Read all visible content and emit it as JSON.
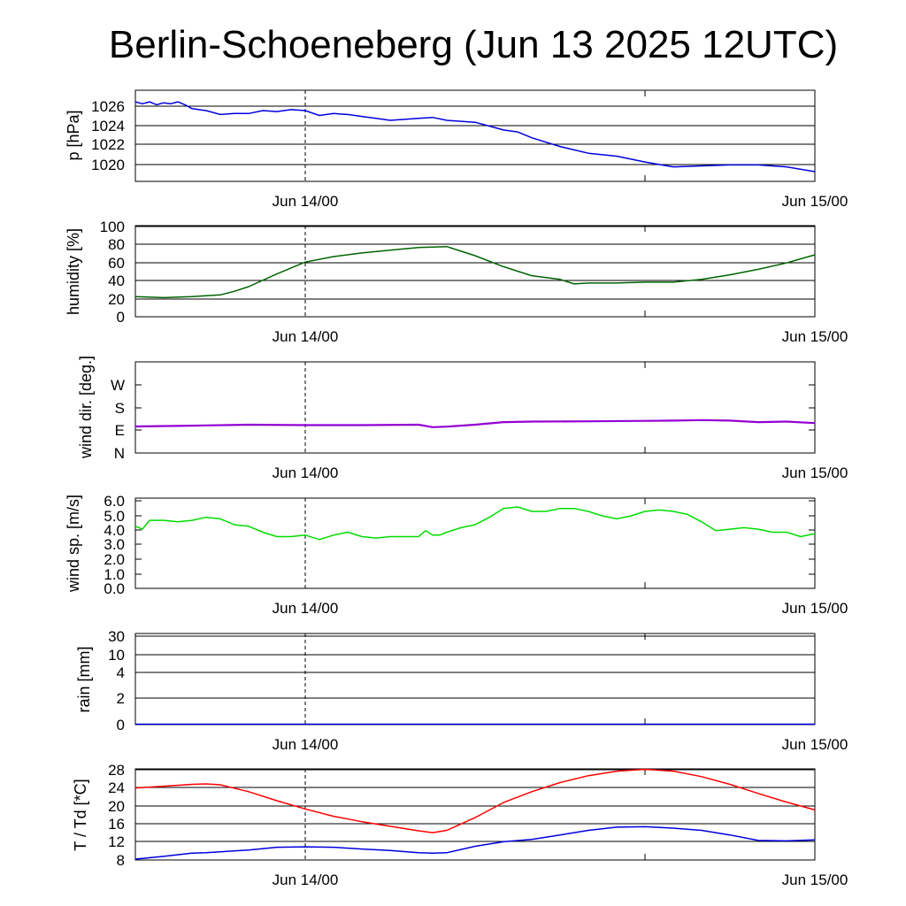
{
  "title": "Berlin-Schoeneberg (Jun 13 2025 12UTC)",
  "x_ticks": [
    "Jun 14/00",
    "Jun 15/00"
  ],
  "chart_data": [
    {
      "type": "line",
      "ylabel": "p [hPa]",
      "yticks": [
        "1026",
        "1024",
        "1022",
        "1020"
      ],
      "ylim": [
        1018.3,
        1027.7
      ],
      "grid": true,
      "x_hours": [
        0,
        0.5,
        1,
        1.5,
        2,
        2.5,
        3,
        3.5,
        4,
        5,
        6,
        7,
        8,
        9,
        10,
        11,
        12,
        13,
        14,
        15,
        16,
        17,
        18,
        20,
        21,
        22,
        23,
        24,
        25,
        26,
        27,
        28,
        30,
        32,
        34,
        36,
        38,
        40,
        42,
        44,
        46,
        48
      ],
      "series": [
        {
          "color": "#0000dd",
          "values": [
            1026.5,
            1026.3,
            1026.5,
            1026.2,
            1026.4,
            1026.3,
            1026.5,
            1026.2,
            1025.8,
            1025.6,
            1025.2,
            1025.3,
            1025.3,
            1025.6,
            1025.5,
            1025.7,
            1025.6,
            1025.1,
            1025.3,
            1025.2,
            1025.0,
            1024.8,
            1024.6,
            1024.8,
            1024.9,
            1024.6,
            1024.5,
            1024.4,
            1024.0,
            1023.6,
            1023.4,
            1022.8,
            1021.9,
            1021.2,
            1020.9,
            1020.3,
            1019.8,
            1019.9,
            1020.0,
            1020.0,
            1019.8,
            1019.3
          ]
        }
      ]
    },
    {
      "type": "line",
      "ylabel": "humidity [%]",
      "yticks": [
        "100",
        "80",
        "60",
        "40",
        "20",
        "0"
      ],
      "ylim": [
        0,
        100
      ],
      "grid": true,
      "x_hours": [
        0,
        2,
        4,
        6,
        7,
        8,
        10,
        12,
        14,
        16,
        18,
        20,
        22,
        24,
        26,
        28,
        30,
        31,
        32,
        34,
        36,
        38,
        40,
        42,
        44,
        46,
        48
      ],
      "series": [
        {
          "color": "#006400",
          "values": [
            22,
            21,
            22,
            24,
            28,
            33,
            47,
            60,
            66,
            70,
            73,
            76,
            77,
            67,
            55,
            45,
            41,
            36,
            37,
            37,
            38,
            38,
            41,
            46,
            52,
            59,
            68
          ]
        }
      ]
    },
    {
      "type": "line",
      "ylabel": "wind dir. [deg.]",
      "yticks": [
        "W",
        "S",
        "E",
        "N"
      ],
      "ylim": [
        0,
        360
      ],
      "grid": false,
      "x_hours": [
        0,
        4,
        8,
        12,
        16,
        20,
        21,
        22,
        24,
        26,
        28,
        32,
        36,
        38,
        40,
        42,
        44,
        46,
        48
      ],
      "series": [
        {
          "color": "#9400d3",
          "values": [
            105,
            108,
            112,
            110,
            110,
            112,
            102,
            104,
            112,
            122,
            124,
            125,
            127,
            128,
            130,
            128,
            122,
            124,
            118
          ]
        }
      ]
    },
    {
      "type": "line",
      "ylabel": "wind sp. [m/s]",
      "yticks": [
        "6.0",
        "5.0",
        "4.0",
        "3.0",
        "2.0",
        "1.0",
        "0.0"
      ],
      "ylim": [
        0,
        6.1
      ],
      "grid": false,
      "x_hours": [
        0,
        0.5,
        1,
        2,
        3,
        4,
        5,
        6,
        7,
        8,
        9,
        10,
        11,
        12,
        13,
        14,
        15,
        16,
        17,
        18,
        19,
        20,
        20.5,
        21,
        21.5,
        22,
        23,
        24,
        25,
        26,
        27,
        28,
        29,
        30,
        31,
        32,
        33,
        34,
        35,
        36,
        37,
        38,
        39,
        40,
        41,
        42,
        43,
        44,
        45,
        46,
        47,
        48
      ],
      "series": [
        {
          "color": "#00dd00",
          "values": [
            4.2,
            4.0,
            4.6,
            4.6,
            4.5,
            4.6,
            4.8,
            4.7,
            4.3,
            4.2,
            3.8,
            3.5,
            3.5,
            3.6,
            3.3,
            3.6,
            3.8,
            3.5,
            3.4,
            3.5,
            3.5,
            3.5,
            3.9,
            3.6,
            3.6,
            3.8,
            4.1,
            4.3,
            4.8,
            5.4,
            5.5,
            5.2,
            5.2,
            5.4,
            5.4,
            5.2,
            4.9,
            4.7,
            4.9,
            5.2,
            5.3,
            5.2,
            5.0,
            4.5,
            3.9,
            4.0,
            4.1,
            4.0,
            3.8,
            3.8,
            3.5,
            3.7
          ]
        }
      ]
    },
    {
      "type": "line",
      "ylabel": "rain [mm]",
      "yticks": [
        "30",
        "10",
        "4",
        "2",
        "0"
      ],
      "grid": true,
      "x_hours": [
        0,
        48
      ],
      "series": [
        {
          "color": "#0000dd",
          "values": [
            0,
            0
          ]
        }
      ]
    },
    {
      "type": "line",
      "ylabel": "T / Td [*C]",
      "yticks": [
        "28",
        "24",
        "20",
        "16",
        "12",
        "8"
      ],
      "ylim": [
        8,
        28
      ],
      "grid": true,
      "x_hours": [
        0,
        2,
        4,
        5,
        6,
        8,
        10,
        12,
        14,
        16,
        18,
        20,
        21,
        22,
        24,
        26,
        28,
        30,
        32,
        34,
        36,
        38,
        40,
        42,
        44,
        46,
        48
      ],
      "series": [
        {
          "name": "T",
          "color": "#ff0000",
          "values": [
            23.8,
            24.2,
            24.6,
            24.7,
            24.5,
            23.0,
            21.0,
            19.2,
            17.6,
            16.4,
            15.4,
            14.4,
            14.0,
            14.5,
            17.3,
            20.6,
            23.0,
            25.0,
            26.5,
            27.5,
            27.9,
            27.5,
            26.3,
            24.6,
            22.6,
            20.7,
            19.0
          ]
        },
        {
          "name": "Td",
          "color": "#0000dd",
          "values": [
            8.2,
            8.8,
            9.5,
            9.6,
            9.8,
            10.2,
            10.8,
            10.9,
            10.8,
            10.4,
            10.1,
            9.6,
            9.5,
            9.6,
            11.0,
            12.0,
            12.5,
            13.5,
            14.5,
            15.2,
            15.3,
            15.0,
            14.5,
            13.5,
            12.3,
            12.2,
            12.4
          ]
        }
      ]
    }
  ]
}
